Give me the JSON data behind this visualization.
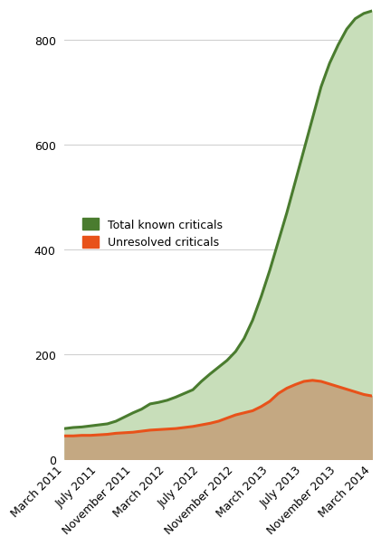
{
  "x_labels": [
    "March 2011",
    "July 2011",
    "November 2011",
    "March 2012",
    "July 2012",
    "November 2012",
    "March 2013",
    "July 2013",
    "November 2013",
    "March 2014"
  ],
  "x_tick_positions": [
    0,
    4,
    8,
    12,
    16,
    20,
    24,
    28,
    32,
    36
  ],
  "total_criticals": [
    58,
    60,
    61,
    63,
    65,
    67,
    72,
    80,
    88,
    95,
    105,
    108,
    112,
    118,
    125,
    132,
    148,
    162,
    175,
    188,
    205,
    230,
    265,
    310,
    360,
    415,
    470,
    530,
    590,
    650,
    710,
    755,
    790,
    820,
    840,
    850,
    855
  ],
  "unresolved_criticals": [
    44,
    44,
    45,
    45,
    46,
    47,
    49,
    50,
    51,
    53,
    55,
    56,
    57,
    58,
    60,
    62,
    65,
    68,
    72,
    78,
    84,
    88,
    92,
    100,
    110,
    125,
    135,
    142,
    148,
    150,
    148,
    143,
    138,
    133,
    128,
    123,
    120
  ],
  "line_color_total": "#4a7c2f",
  "fill_color_total": "#c8deba",
  "line_color_unresolved": "#e8521a",
  "fill_color_unresolved": "#c4a882",
  "background_color": "#ffffff",
  "ylim": [
    0,
    860
  ],
  "yticks": [
    0,
    200,
    400,
    600,
    800
  ],
  "legend_total": "Total known criticals",
  "legend_unresolved": "Unresolved criticals",
  "grid_color": "#cccccc",
  "label_fontsize": 9,
  "tick_fontsize": 9
}
